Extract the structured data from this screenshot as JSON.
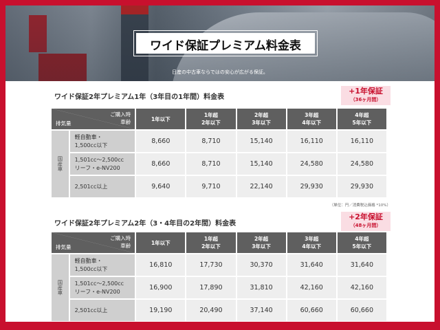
{
  "hero": {
    "title": "ワイド保証プレミアム料金表",
    "tagline": "日産の中古車ならではの安心が広がる保証。"
  },
  "header": {
    "corner_top": "ご購入時\n車齢",
    "corner_bottom": "排気量",
    "columns": [
      "1年以下",
      "1年超\n2年以下",
      "2年超\n3年以下",
      "3年超\n4年以下",
      "4年超\n5年以下"
    ],
    "group": "国産車",
    "rows": [
      "軽自動車・\n1,500cc以下",
      "1,501cc〜2,500cc\nリーフ・e-NV200",
      "2,501cc以上"
    ]
  },
  "tables": [
    {
      "title": "ワイド保証2年プレミアム1年（3年目の1年間）料金表",
      "badge_main": "+1年保証",
      "badge_sub": "（36ヶ月間）",
      "values": [
        [
          "8,660",
          "8,710",
          "15,140",
          "16,110",
          "16,110"
        ],
        [
          "8,660",
          "8,710",
          "15,140",
          "24,580",
          "24,580"
        ],
        [
          "9,640",
          "9,710",
          "22,140",
          "29,930",
          "29,930"
        ]
      ],
      "note": "（単位：円／消費税込価格 *10%）"
    },
    {
      "title": "ワイド保証2年プレミアム2年（3・4年目の2年間）料金表",
      "badge_main": "+2年保証",
      "badge_sub": "（48ヶ月間）",
      "values": [
        [
          "16,810",
          "17,730",
          "30,370",
          "31,640",
          "31,640"
        ],
        [
          "16,900",
          "17,890",
          "31,810",
          "42,160",
          "42,160"
        ],
        [
          "19,190",
          "20,490",
          "37,140",
          "60,660",
          "60,660"
        ]
      ]
    }
  ],
  "colors": {
    "frame": "#c8102e",
    "header_bg": "#5f5f5f",
    "badge_bg": "#fadde3"
  }
}
